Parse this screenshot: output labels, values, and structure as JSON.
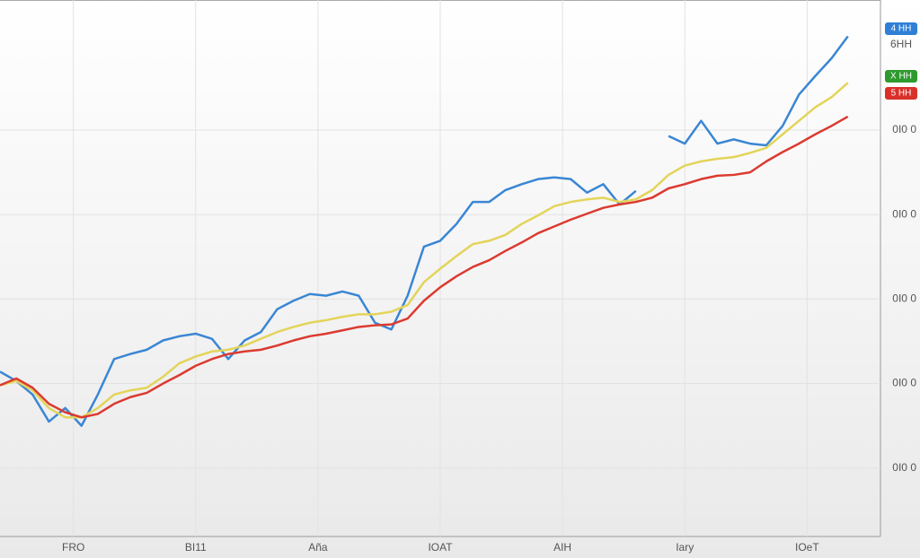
{
  "chart_data": {
    "type": "line",
    "x": [
      0,
      2,
      4,
      6,
      8,
      10,
      12,
      14,
      16,
      18,
      20,
      22,
      24,
      26,
      28,
      30,
      32,
      34,
      36,
      38,
      40,
      42,
      44,
      46,
      48,
      50,
      52,
      54,
      56,
      58,
      60,
      62,
      64,
      66,
      68,
      70,
      72,
      74,
      76,
      78,
      80,
      82,
      84,
      86,
      88,
      90,
      92,
      94,
      96,
      98,
      100,
      102,
      104
    ],
    "series": [
      {
        "name": "4 HH",
        "color": "#3a86d4",
        "tag_color": "#2f7fd6",
        "values": [
          2.14,
          2.03,
          1.87,
          1.55,
          1.71,
          1.5,
          1.87,
          2.29,
          2.35,
          2.4,
          2.51,
          2.56,
          2.59,
          2.53,
          2.29,
          2.51,
          2.61,
          2.88,
          2.98,
          3.06,
          3.04,
          3.09,
          3.04,
          2.72,
          2.64,
          3.04,
          3.62,
          3.69,
          3.89,
          4.15,
          4.15,
          4.29,
          4.36,
          4.42,
          4.44,
          4.42,
          4.26,
          4.36,
          4.12,
          4.28,
          null,
          4.93,
          4.84,
          5.11,
          4.84,
          4.89,
          4.84,
          4.82,
          5.05,
          5.42,
          5.64,
          5.85,
          6.11
        ]
      },
      {
        "name": "X HH",
        "color": "#e3d45a",
        "tag_color": "#2e9a2e",
        "values": [
          1.98,
          2.03,
          1.92,
          1.71,
          1.6,
          1.6,
          1.71,
          1.87,
          1.92,
          1.95,
          2.08,
          2.24,
          2.32,
          2.38,
          2.4,
          2.45,
          2.53,
          2.61,
          2.67,
          2.72,
          2.75,
          2.79,
          2.82,
          2.82,
          2.85,
          2.93,
          3.2,
          3.36,
          3.51,
          3.65,
          3.69,
          3.76,
          3.89,
          3.99,
          4.1,
          4.15,
          4.18,
          4.2,
          4.15,
          4.18,
          4.29,
          4.47,
          4.58,
          4.63,
          4.66,
          4.68,
          4.73,
          4.79,
          4.95,
          5.11,
          5.27,
          5.39,
          5.56
        ]
      },
      {
        "name": "5 HH",
        "color": "#dc3a30",
        "tag_color": "#d9302a",
        "values": [
          1.98,
          2.06,
          1.95,
          1.76,
          1.66,
          1.6,
          1.64,
          1.76,
          1.84,
          1.89,
          2.0,
          2.1,
          2.21,
          2.29,
          2.35,
          2.38,
          2.4,
          2.45,
          2.51,
          2.56,
          2.59,
          2.63,
          2.67,
          2.69,
          2.7,
          2.77,
          2.98,
          3.14,
          3.27,
          3.38,
          3.46,
          3.57,
          3.67,
          3.78,
          3.86,
          3.94,
          4.01,
          4.08,
          4.12,
          4.15,
          4.2,
          4.31,
          4.36,
          4.42,
          4.46,
          4.47,
          4.5,
          4.63,
          4.74,
          4.84,
          4.95,
          5.05,
          5.16
        ]
      }
    ],
    "annotation": "6HH",
    "xlim": [
      0,
      108
    ],
    "xticks": [
      {
        "value": 9,
        "label": "FRO"
      },
      {
        "value": 24,
        "label": "BI11"
      },
      {
        "value": 39,
        "label": "Aña"
      },
      {
        "value": 54,
        "label": "IOAT"
      },
      {
        "value": 69,
        "label": "AIH"
      },
      {
        "value": 84,
        "label": "Iary"
      },
      {
        "value": 99,
        "label": "IOeT"
      }
    ],
    "ylim": [
      0.19,
      6.54
    ],
    "yticks": [
      {
        "value": 1,
        "label": "0I0 0"
      },
      {
        "value": 2,
        "label": "0I0 0"
      },
      {
        "value": 3,
        "label": "0I0 0"
      },
      {
        "value": 4,
        "label": "0I0 0"
      },
      {
        "value": 5,
        "label": "0I0 0"
      }
    ],
    "grid": true
  }
}
